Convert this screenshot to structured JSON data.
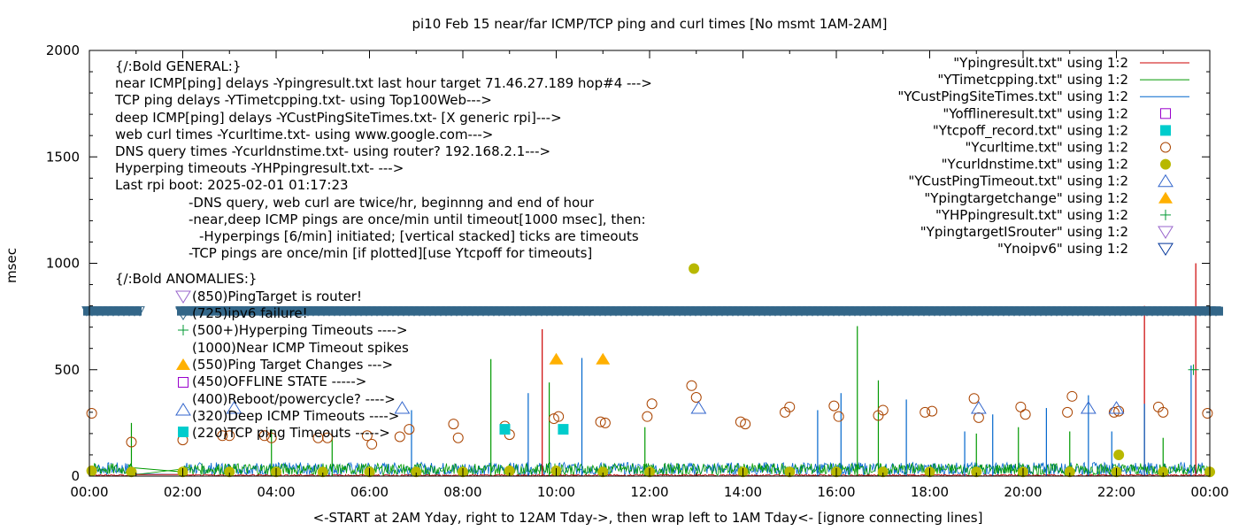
{
  "chart_data": {
    "type": "line",
    "title": "pi10 Feb 15  near/far ICMP/TCP ping and curl times [No msmt 1AM-2AM]",
    "xlabel": "<-START at 2AM Yday, right to 12AM Tday->, then wrap left to 1AM Tday<- [ignore connecting lines]",
    "ylabel": "msec",
    "xlim": [
      0,
      24
    ],
    "ylim": [
      0,
      2000
    ],
    "x_unit": "hour of day",
    "x_tick_labels": [
      "00:00",
      "02:00",
      "04:00",
      "06:00",
      "08:00",
      "10:00",
      "12:00",
      "14:00",
      "16:00",
      "18:00",
      "20:00",
      "22:00",
      "00:00"
    ],
    "y_tick_values": [
      0,
      500,
      1000,
      1500,
      2000
    ],
    "y_tick_labels": [
      "0",
      "500",
      "1000",
      "1500",
      "2000"
    ],
    "legend_position": "top-right",
    "legend": [
      {
        "label": "\"Ypingresult.txt\" using 1:2",
        "style": "line",
        "color": "#cc0000"
      },
      {
        "label": "\"YTimetcpping.txt\" using 1:2",
        "style": "line",
        "color": "#009900"
      },
      {
        "label": "\"YCustPingSiteTimes.txt\" using 1:2",
        "style": "line",
        "color": "#0066cc"
      },
      {
        "label": "\"Yofflineresult.txt\" using 1:2",
        "style": "open-square",
        "color": "#9900cc"
      },
      {
        "label": "\"Ytcpoff_record.txt\" using 1:2",
        "style": "filled-square",
        "color": "#00cccc"
      },
      {
        "label": "\"Ycurltime.txt\" using 1:2",
        "style": "open-circle",
        "color": "#aa4400"
      },
      {
        "label": "\"Ycurldnstime.txt\" using 1:2",
        "style": "filled-circle",
        "color": "#b8b800"
      },
      {
        "label": "\"YCustPingTimeout.txt\" using 1:2",
        "style": "open-triangle-up",
        "color": "#3366cc"
      },
      {
        "label": "\"Ypingtargetchange\" using 1:2",
        "style": "filled-triangle-up",
        "color": "#ffb000"
      },
      {
        "label": "\"YHPpingresult.txt\" using 1:2",
        "style": "plus",
        "color": "#009933"
      },
      {
        "label": "\"YpingtargetISrouter\" using 1:2",
        "style": "open-triangle-down",
        "color": "#9966cc"
      },
      {
        "label": "\"Ynoipv6\" using 1:2",
        "style": "open-triangle-down",
        "color": "#003399"
      }
    ],
    "notes": [
      "{/:Bold GENERAL:}",
      "near ICMP[ping] delays -Ypingresult.txt last hour target 71.46.27.189 hop#4 --->",
      "TCP ping delays -YTimetcpping.txt- using Top100Web--->",
      "deep ICMP[ping] delays -YCustPingSiteTimes.txt- [X generic rpi]--->",
      "web curl times -Ycurltime.txt- using www.google.com--->",
      "DNS query times -Ycurldnstime.txt- using router? 192.168.2.1--->",
      "Hyperping timeouts -YHPpingresult.txt- --->",
      "Last rpi boot: 2025-02-01 01:17:23",
      "-DNS query, web curl are twice/hr, beginnng and end of hour",
      "-near,deep ICMP pings are once/min until timeout[1000 msec], then:",
      "-Hyperpings [6/min] initiated; [vertical stacked] ticks are timeouts",
      "-TCP pings are once/min [if plotted][use Ytcpoff for timeouts]",
      "{/:Bold ANOMALIES:}",
      "(850)PingTarget is router!",
      "(725)ipv6 failure!",
      "(500+)Hyperping Timeouts ---->",
      "(1000)Near ICMP Timeout spikes",
      "(550)Ping Target Changes --->",
      "(450)OFFLINE STATE ----->",
      "(400)Reboot/powercycle? ---->",
      "(320)Deep ICMP Timeouts ---->",
      "(220)TCP ping Timeouts ----->"
    ],
    "noipv6_band_y": 775,
    "series": [
      {
        "name": "\"Ycurltime.txt\" using 1:2",
        "marker": "open-circle",
        "color": "#aa4400",
        "x": [
          0.05,
          0.9,
          2.0,
          2.85,
          3.0,
          3.75,
          3.9,
          4.9,
          5.1,
          5.95,
          6.05,
          6.65,
          6.85,
          7.8,
          7.9,
          8.9,
          9.0,
          9.95,
          10.05,
          10.95,
          11.05,
          11.95,
          12.05,
          12.9,
          13.0,
          13.95,
          14.05,
          14.9,
          15.0,
          15.95,
          16.05,
          16.9,
          17.0,
          17.9,
          18.05,
          18.95,
          19.05,
          19.95,
          20.05,
          20.95,
          21.05,
          21.95,
          22.05,
          22.9,
          23.0,
          23.95
        ],
        "y": [
          295,
          160,
          170,
          190,
          190,
          190,
          180,
          180,
          180,
          190,
          150,
          185,
          220,
          245,
          180,
          235,
          195,
          270,
          280,
          255,
          250,
          280,
          340,
          425,
          370,
          255,
          245,
          300,
          325,
          330,
          280,
          285,
          310,
          300,
          305,
          365,
          275,
          325,
          290,
          300,
          375,
          300,
          305,
          325,
          300,
          295
        ]
      },
      {
        "name": "\"Ycurldnstime.txt\" using 1:2",
        "marker": "filled-circle",
        "color": "#b8b800",
        "x": [
          0.05,
          0.9,
          2.0,
          3.0,
          4.0,
          5.0,
          6.0,
          7.0,
          8.0,
          9.0,
          10.0,
          11.0,
          12.0,
          12.95,
          14.0,
          15.0,
          16.0,
          17.0,
          18.0,
          19.0,
          20.0,
          21.0,
          22.0,
          22.05,
          23.0,
          24.0
        ],
        "y": [
          25,
          20,
          20,
          20,
          20,
          20,
          20,
          20,
          20,
          25,
          25,
          20,
          20,
          975,
          20,
          20,
          20,
          20,
          20,
          20,
          20,
          20,
          20,
          100,
          20,
          20
        ]
      },
      {
        "name": "\"YCustPingTimeout.txt\" using 1:2",
        "marker": "open-triangle-up",
        "color": "#3366cc",
        "x": [
          3.1,
          6.7,
          13.05,
          19.05,
          21.4,
          22.0
        ],
        "y": [
          320,
          320,
          320,
          320,
          320,
          320
        ]
      },
      {
        "name": "\"Ypingtargetchange\" using 1:2",
        "marker": "filled-triangle-up",
        "color": "#ffb000",
        "x": [
          10.0,
          11.0
        ],
        "y": [
          550,
          550
        ]
      },
      {
        "name": "\"Ytcpoff_record.txt\" using 1:2",
        "marker": "filled-square",
        "color": "#00cccc",
        "x": [
          8.9,
          10.15
        ],
        "y": [
          220,
          220
        ]
      },
      {
        "name": "\"YHPpingresult.txt\" using 1:2",
        "marker": "plus",
        "color": "#009933",
        "x": [
          23.65
        ],
        "y": [
          500
        ]
      },
      {
        "name": "\"Ypingresult.txt\" using 1:2",
        "style": "spikes",
        "color": "#cc0000",
        "x": [
          9.7,
          22.6,
          23.7
        ],
        "y": [
          690,
          800,
          1000
        ]
      },
      {
        "name": "\"YTimetcpping.txt\" using 1:2",
        "style": "spikes",
        "color": "#009900",
        "x": [
          0.9,
          3.9,
          5.2,
          8.6,
          9.85,
          11.9,
          16.45,
          16.9,
          19.0,
          19.9,
          21.0,
          23.0
        ],
        "y": [
          250,
          220,
          180,
          550,
          440,
          230,
          705,
          450,
          200,
          230,
          210,
          180
        ]
      },
      {
        "name": "\"YCustPingSiteTimes.txt\" using 1:2",
        "style": "spikes",
        "color": "#0066cc",
        "x": [
          6.9,
          9.4,
          10.55,
          15.6,
          16.1,
          17.5,
          18.75,
          19.35,
          20.5,
          21.4,
          21.9,
          22.6,
          23.6
        ],
        "y": [
          310,
          390,
          555,
          310,
          390,
          360,
          210,
          290,
          320,
          380,
          210,
          340,
          520
        ]
      }
    ]
  }
}
